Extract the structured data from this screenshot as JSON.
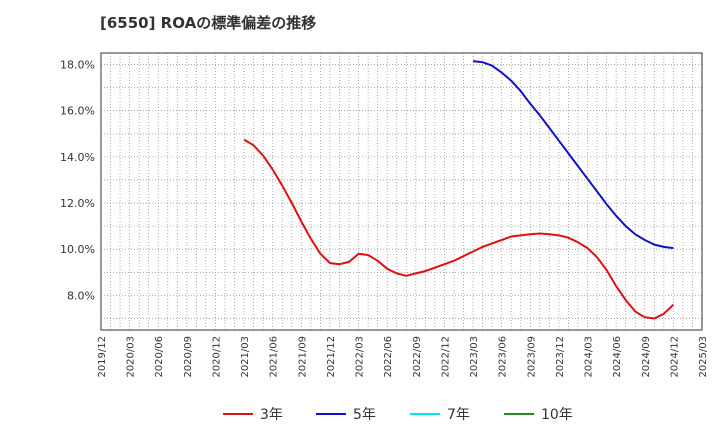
{
  "chart_data": {
    "type": "line",
    "title": "[6550]  ROAの標準偏差の推移",
    "xlabel": "",
    "ylabel": "",
    "ylim": [
      6.5,
      18.5
    ],
    "y_ticks": [
      8.0,
      10.0,
      12.0,
      14.0,
      16.0,
      18.0
    ],
    "y_tick_labels": [
      "8.0%",
      "10.0%",
      "12.0%",
      "14.0%",
      "16.0%",
      "18.0%"
    ],
    "x_tick_labels": [
      "2019/12",
      "2020/03",
      "2020/06",
      "2020/09",
      "2020/12",
      "2021/03",
      "2021/06",
      "2021/09",
      "2021/12",
      "2022/03",
      "2022/06",
      "2022/09",
      "2022/12",
      "2023/03",
      "2023/06",
      "2023/09",
      "2023/12",
      "2024/03",
      "2024/06",
      "2024/09",
      "2024/12",
      "2025/03"
    ],
    "grid": true,
    "legend_position": "bottom",
    "series": [
      {
        "name": "3年",
        "color": "#dd1111",
        "x": [
          15,
          16,
          17,
          18,
          19,
          20,
          21,
          22,
          23,
          24,
          25,
          26,
          27,
          28,
          29,
          30,
          31,
          32,
          33,
          34,
          35,
          36,
          37,
          38,
          39,
          40,
          41,
          42,
          43,
          44,
          45,
          46,
          47,
          48,
          49,
          50,
          51,
          52,
          53,
          54,
          55,
          56,
          57,
          58,
          59,
          60
        ],
        "values": [
          14.75,
          14.5,
          14.05,
          13.45,
          12.75,
          12.0,
          11.2,
          10.45,
          9.8,
          9.4,
          9.35,
          9.45,
          9.8,
          9.75,
          9.5,
          9.15,
          8.95,
          8.85,
          8.95,
          9.05,
          9.2,
          9.35,
          9.5,
          9.7,
          9.9,
          10.1,
          10.25,
          10.4,
          10.55,
          10.6,
          10.65,
          10.68,
          10.65,
          10.6,
          10.5,
          10.3,
          10.05,
          9.65,
          9.1,
          8.4,
          7.8,
          7.3,
          7.05,
          7.0,
          7.2,
          7.6
        ]
      },
      {
        "name": "5年",
        "color": "#1111cc",
        "x": [
          39,
          40,
          41,
          42,
          43,
          44,
          45,
          46,
          47,
          48,
          49,
          50,
          51,
          52,
          53,
          54,
          55,
          56,
          57,
          58,
          59,
          60
        ],
        "values": [
          18.15,
          18.1,
          17.95,
          17.65,
          17.3,
          16.85,
          16.3,
          15.8,
          15.25,
          14.7,
          14.15,
          13.6,
          13.05,
          12.5,
          11.95,
          11.45,
          11.0,
          10.65,
          10.4,
          10.2,
          10.1,
          10.05
        ]
      },
      {
        "name": "7年",
        "color": "#00e5ee",
        "x": [],
        "values": []
      },
      {
        "name": "10年",
        "color": "#228b22",
        "x": [],
        "values": []
      }
    ]
  }
}
